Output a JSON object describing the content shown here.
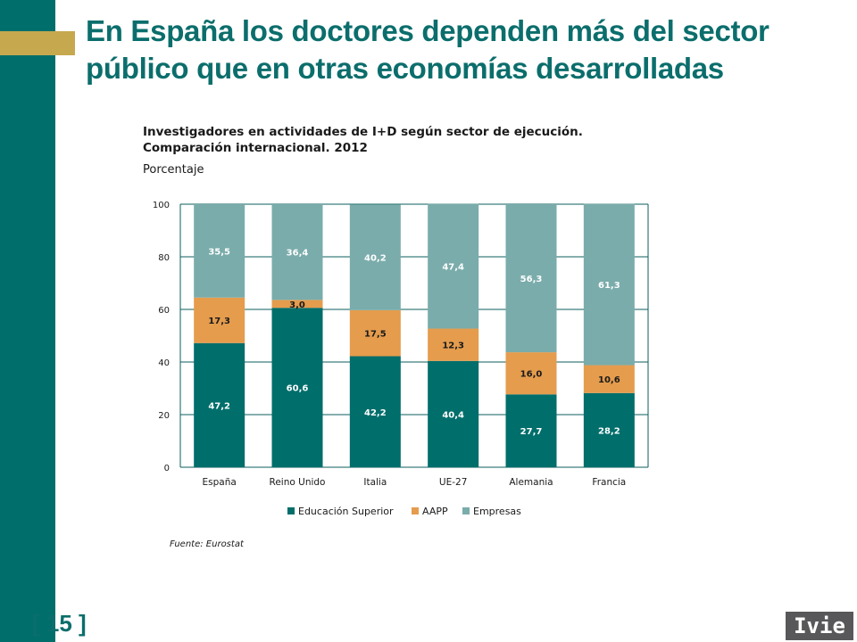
{
  "slide": {
    "title": "En España los doctores dependen más del sector público que en otras economías desarrolladas",
    "page_number": "[ 15 ]",
    "logo_text": "Ivie",
    "source": "Fuente: Eurostat"
  },
  "chart_data": {
    "type": "bar",
    "stacked": true,
    "title": "Investigadores en actividades de I+D según sector de ejecución. Comparación internacional. 2012",
    "title_lines": [
      "Investigadores en actividades de I+D según sector de ejecución.",
      "Comparación internacional. 2012"
    ],
    "subtitle": "Porcentaje",
    "categories": [
      "España",
      "Reino Unido",
      "Italia",
      "UE-27",
      "Alemania",
      "Francia"
    ],
    "series": [
      {
        "name": "Educación Superior",
        "color": "#006e6b",
        "values": [
          47.2,
          60.6,
          42.2,
          40.4,
          27.7,
          28.2
        ],
        "labels": [
          "47,2",
          "60,6",
          "42,2",
          "40,4",
          "27,7",
          "28,2"
        ],
        "label_color": "#ffffff"
      },
      {
        "name": "AAPP",
        "color": "#e59c4d",
        "values": [
          17.3,
          3.0,
          17.5,
          12.3,
          16.0,
          10.6
        ],
        "labels": [
          "17,3",
          "3,0",
          "17,5",
          "12,3",
          "16,0",
          "10,6"
        ],
        "label_color": "#1a1a1a"
      },
      {
        "name": "Empresas",
        "color": "#7aacab",
        "values": [
          35.5,
          36.4,
          40.2,
          47.4,
          56.3,
          61.3
        ],
        "labels": [
          "35,5",
          "36,4",
          "40,2",
          "47,4",
          "56,3",
          "61,3"
        ],
        "label_color": "#ffffff"
      }
    ],
    "ylim": [
      0,
      100
    ],
    "yticks": [
      0,
      20,
      40,
      60,
      80,
      100
    ],
    "xlabel": "",
    "ylabel": "",
    "grid": true,
    "legend_position": "bottom"
  }
}
